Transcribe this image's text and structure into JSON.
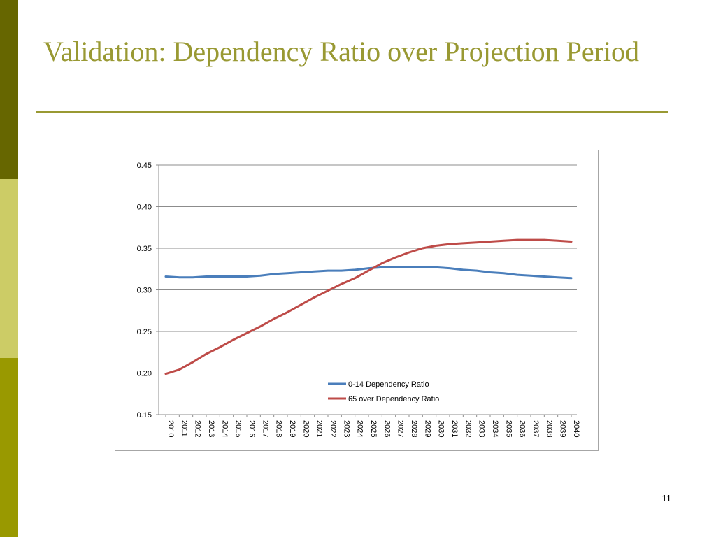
{
  "slide": {
    "title": "Validation: Dependency Ratio over Projection Period",
    "page_number": "11",
    "colors": {
      "accent": "#999933",
      "sidebar_dark": "#666600",
      "sidebar_light": "#cccc66",
      "sidebar_mid": "#999900"
    }
  },
  "chart_data": {
    "type": "line",
    "title": "",
    "xlabel": "",
    "ylabel": "",
    "x": [
      "2010",
      "2011",
      "2012",
      "2013",
      "2014",
      "2015",
      "2016",
      "2017",
      "2018",
      "2019",
      "2020",
      "2021",
      "2022",
      "2023",
      "2024",
      "2025",
      "2026",
      "2027",
      "2028",
      "2029",
      "2030",
      "2031",
      "2032",
      "2033",
      "2034",
      "2035",
      "2036",
      "2037",
      "2038",
      "2039",
      "2040"
    ],
    "ylim": [
      0.15,
      0.45
    ],
    "yticks": [
      "0.45",
      "0.40",
      "0.35",
      "0.30",
      "0.25",
      "0.20",
      "0.15"
    ],
    "grid": true,
    "legend_position": "bottom-center",
    "series": [
      {
        "name": "0-14 Dependency Ratio",
        "color": "#4a7ebb",
        "values": [
          0.316,
          0.315,
          0.315,
          0.316,
          0.316,
          0.316,
          0.316,
          0.317,
          0.319,
          0.32,
          0.321,
          0.322,
          0.323,
          0.323,
          0.324,
          0.326,
          0.327,
          0.327,
          0.327,
          0.327,
          0.327,
          0.326,
          0.324,
          0.323,
          0.321,
          0.32,
          0.318,
          0.317,
          0.316,
          0.315,
          0.314
        ]
      },
      {
        "name": "65 over Dependency Ratio",
        "color": "#be4b48",
        "values": [
          0.199,
          0.204,
          0.213,
          0.223,
          0.231,
          0.24,
          0.248,
          0.256,
          0.265,
          0.273,
          0.282,
          0.291,
          0.299,
          0.307,
          0.314,
          0.323,
          0.332,
          0.339,
          0.345,
          0.35,
          0.353,
          0.355,
          0.356,
          0.357,
          0.358,
          0.359,
          0.36,
          0.36,
          0.36,
          0.359,
          0.358
        ]
      }
    ]
  }
}
